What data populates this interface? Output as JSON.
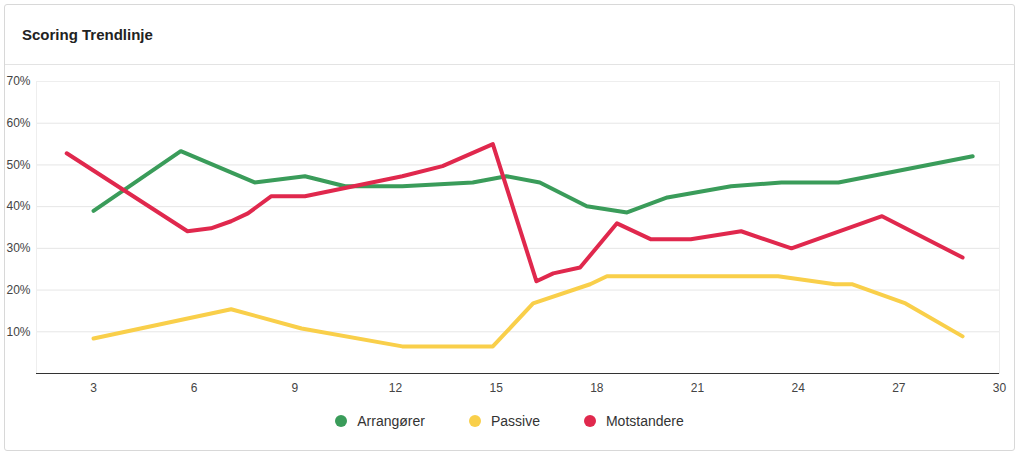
{
  "chart_data": {
    "type": "line",
    "title": "Scoring Trendlinje",
    "xlim": [
      1.3,
      30
    ],
    "xticks": [
      3,
      6,
      9,
      12,
      15,
      18,
      21,
      24,
      27,
      30
    ],
    "ylim": [
      0,
      70
    ],
    "yticks": [
      {
        "value": 10,
        "label": "10%"
      },
      {
        "value": 20,
        "label": "20%"
      },
      {
        "value": 30,
        "label": "30%"
      },
      {
        "value": 40,
        "label": "40%"
      },
      {
        "value": 50,
        "label": "50%"
      },
      {
        "value": 60,
        "label": "60%"
      },
      {
        "value": 70,
        "label": "70%"
      }
    ],
    "grid": true,
    "legend": "bottom",
    "series": [
      {
        "name": "Arrangører",
        "color": "#3a9c5a",
        "x": [
          3,
          5.6,
          7.8,
          9.3,
          10.5,
          12.2,
          14.3,
          15.3,
          16.3,
          17.7,
          18.9,
          20.1,
          22,
          23.5,
          25.2,
          29.2
        ],
        "values": [
          39,
          53.3,
          45.8,
          47.3,
          44.9,
          44.9,
          45.8,
          47.3,
          45.8,
          40.1,
          38.6,
          42.2,
          44.9,
          45.8,
          45.8,
          52.1
        ]
      },
      {
        "name": "Passive",
        "color": "#f9cf4a",
        "x": [
          3,
          7.1,
          9.2,
          12.2,
          14.9,
          16.1,
          17.8,
          18.3,
          23.4,
          25.1,
          25.6,
          27.2,
          28.9
        ],
        "values": [
          8.4,
          15.4,
          10.8,
          6.5,
          6.5,
          16.8,
          21.4,
          23.3,
          23.3,
          21.4,
          21.4,
          16.8,
          8.9
        ]
      },
      {
        "name": "Motstandere",
        "color": "#e0284d",
        "x": [
          2.2,
          5.8,
          6.5,
          7.1,
          7.6,
          8.3,
          9.3,
          12.2,
          13.4,
          14.9,
          16.2,
          16.7,
          17.5,
          18.6,
          19.6,
          20.8,
          22.3,
          23.8,
          26.5,
          28.9
        ],
        "values": [
          52.8,
          34.1,
          34.8,
          36.5,
          38.4,
          42.5,
          42.5,
          47.3,
          49.7,
          55,
          22.1,
          24,
          25.4,
          36,
          32.2,
          32.2,
          34.1,
          30,
          37.7,
          27.8
        ]
      }
    ]
  }
}
